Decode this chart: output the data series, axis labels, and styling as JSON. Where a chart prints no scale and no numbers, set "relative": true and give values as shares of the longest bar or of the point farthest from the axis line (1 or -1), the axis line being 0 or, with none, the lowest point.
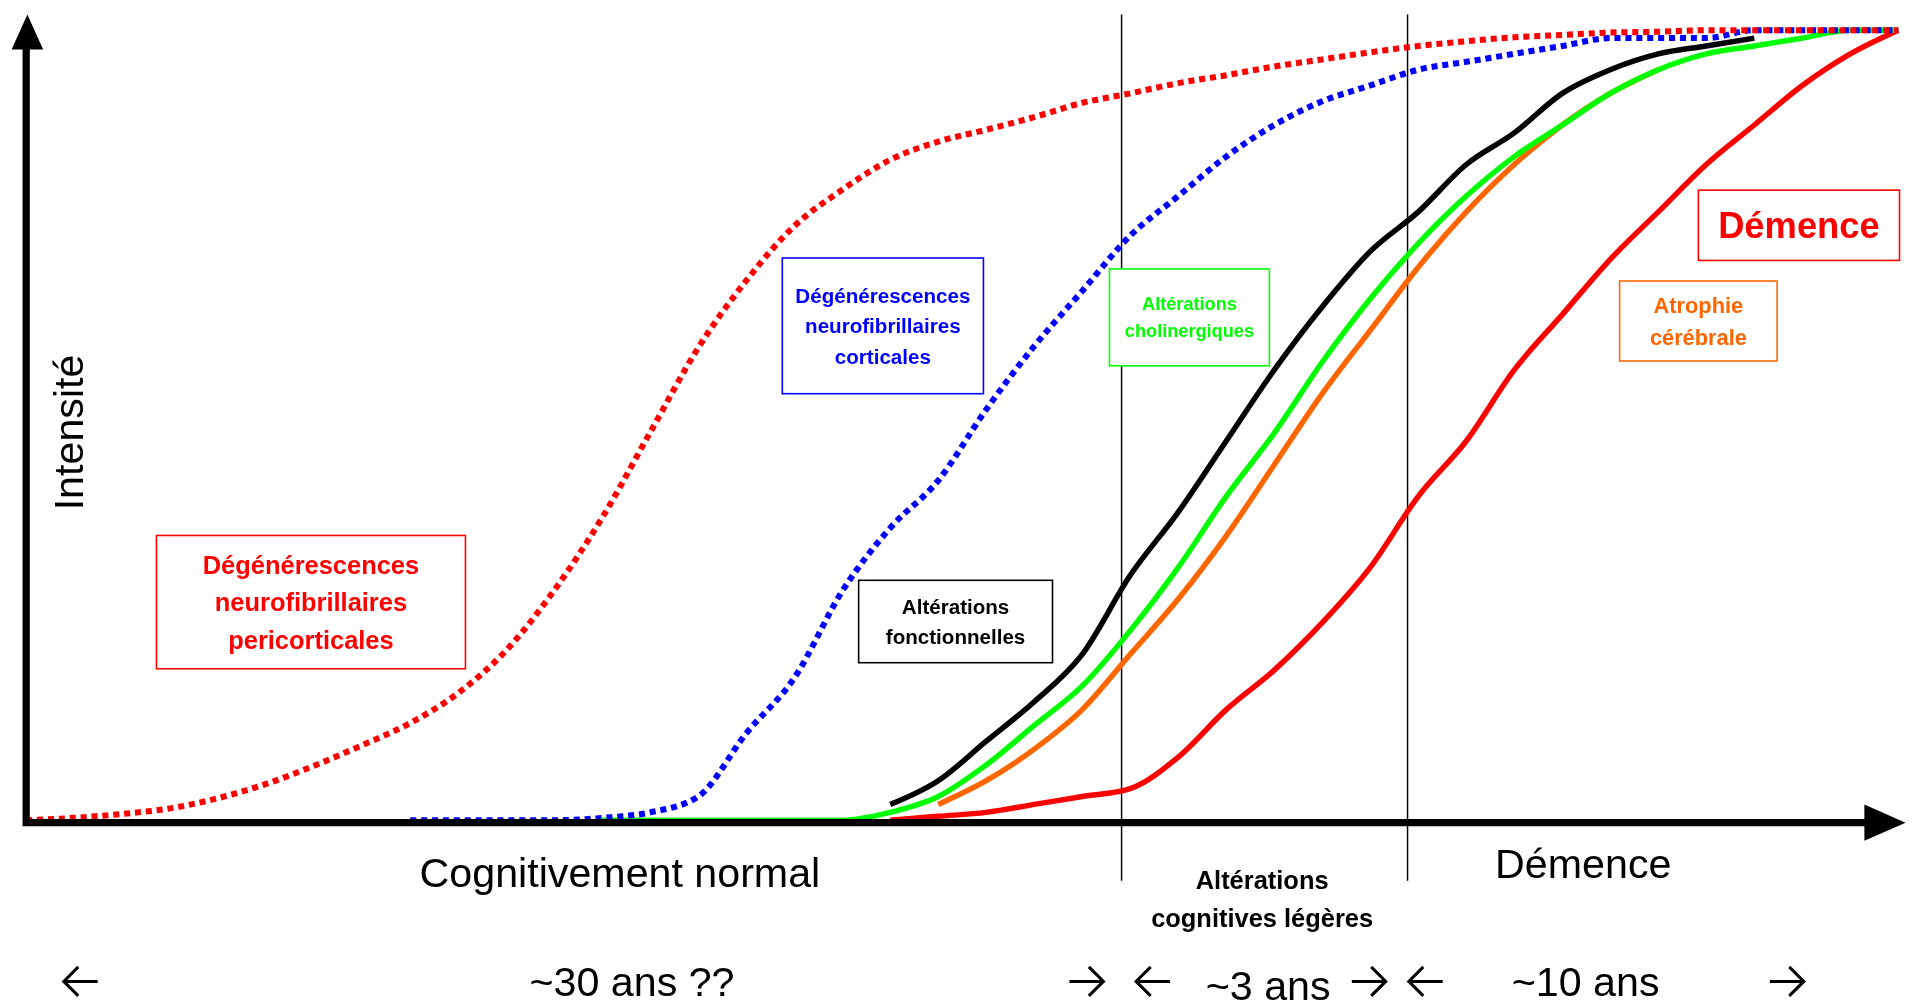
{
  "chart_data": {
    "type": "line",
    "relative": true,
    "ylabel": "Intensité",
    "legend": false,
    "categories": [
      null,
      null,
      null,
      null,
      null,
      null,
      null,
      null,
      null,
      null,
      null,
      null,
      null,
      null,
      null,
      null,
      null,
      null,
      null,
      null,
      null,
      null,
      null,
      null,
      null,
      null,
      null,
      null,
      null,
      null,
      null,
      null,
      null,
      null,
      null,
      null,
      null,
      null,
      null,
      null
    ],
    "series": [
      {
        "name": "Dégénérescences neurofibrillaires pericorticales",
        "color": "#ff0000",
        "line_style": "dotted",
        "values": [
          0,
          0.003,
          0.008,
          0.015,
          0.028,
          0.046,
          0.069,
          0.095,
          0.123,
          0.161,
          0.215,
          0.291,
          0.383,
          0.491,
          0.598,
          0.683,
          0.752,
          0.798,
          0.836,
          0.859,
          0.874,
          0.89,
          0.908,
          0.92,
          0.933,
          0.943,
          0.954,
          0.963,
          0.972,
          0.98,
          0.986,
          0.991,
          0.994,
          0.997,
          0.998,
          1,
          1,
          1,
          1,
          1
        ]
      },
      {
        "name": "Dégénérescences neurofibrillaires corticales",
        "color": "#0000ff",
        "line_style": "dotted",
        "values": [
          null,
          null,
          null,
          null,
          null,
          null,
          null,
          null,
          0,
          0,
          0,
          0,
          0.003,
          0.01,
          0.03,
          0.11,
          0.18,
          0.29,
          0.37,
          0.43,
          0.52,
          0.6,
          0.67,
          0.74,
          0.79,
          0.84,
          0.88,
          0.91,
          0.93,
          0.95,
          0.96,
          0.97,
          0.98,
          0.99,
          0.99,
          0.99,
          1,
          1,
          1,
          1
        ]
      },
      {
        "name": "Altérations fonctionnelles",
        "color": "#000000",
        "line_style": "solid",
        "values": [
          null,
          null,
          null,
          null,
          null,
          null,
          null,
          null,
          null,
          null,
          null,
          null,
          null,
          null,
          null,
          null,
          null,
          null,
          0.02,
          0.05,
          0.1,
          0.15,
          0.21,
          0.31,
          0.39,
          0.48,
          0.57,
          0.65,
          0.72,
          0.77,
          0.83,
          0.87,
          0.92,
          0.95,
          0.97,
          0.98,
          0.99,
          null,
          null,
          null
        ]
      },
      {
        "name": "Altérations cholinergiques",
        "color": "#00ff00",
        "line_style": "solid",
        "values": [
          null,
          null,
          null,
          null,
          null,
          null,
          null,
          null,
          null,
          null,
          null,
          null,
          0,
          0,
          0,
          0,
          0,
          0,
          0.01,
          0.03,
          0.07,
          0.12,
          0.17,
          0.24,
          0.32,
          0.41,
          0.49,
          0.58,
          0.66,
          0.73,
          0.79,
          0.84,
          0.88,
          0.92,
          0.95,
          0.97,
          0.98,
          0.99,
          1,
          1
        ]
      },
      {
        "name": "Atrophie cérébrale",
        "color": "#ff6600",
        "line_style": "solid",
        "values": [
          null,
          null,
          null,
          null,
          null,
          null,
          null,
          null,
          null,
          null,
          null,
          null,
          null,
          null,
          null,
          null,
          null,
          null,
          null,
          0.02,
          0.05,
          0.09,
          0.14,
          0.21,
          0.28,
          0.36,
          0.45,
          0.54,
          0.62,
          0.7,
          0.77,
          0.83,
          0.88,
          0.92,
          0.95,
          null,
          null,
          null,
          null,
          null
        ]
      },
      {
        "name": "Démence",
        "color": "#ff0000",
        "line_style": "solid",
        "values": [
          null,
          null,
          null,
          null,
          null,
          null,
          null,
          null,
          null,
          null,
          null,
          null,
          null,
          null,
          null,
          null,
          null,
          null,
          0,
          0.005,
          0.01,
          0.02,
          0.03,
          0.04,
          0.08,
          0.14,
          0.19,
          0.25,
          0.32,
          0.41,
          0.48,
          0.57,
          0.64,
          0.71,
          0.77,
          0.83,
          0.88,
          0.93,
          0.97,
          1
        ]
      }
    ],
    "annotations": [
      "Cognitivement normal",
      "Altérations cognitives légères",
      "Démence",
      "~30 ans ??",
      "~3 ans",
      "~10 ans"
    ]
  }
}
